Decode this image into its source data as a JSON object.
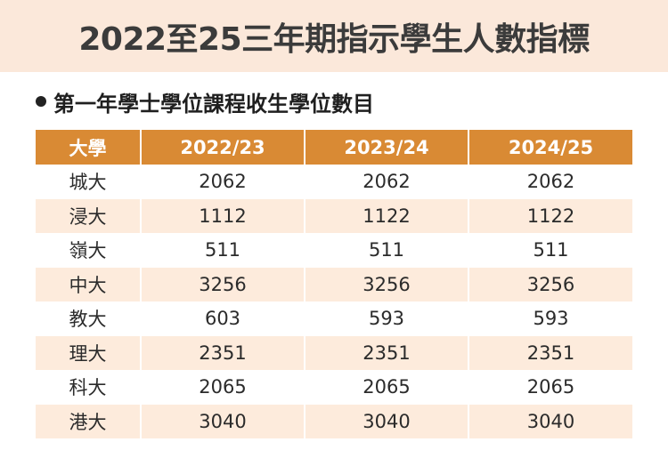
{
  "title": "2022至25三年期指示學生人數指標",
  "subtitle": "第一年學士學位課程收生學位數目",
  "table": {
    "headers": [
      "大學",
      "2022/23",
      "2023/24",
      "2024/25"
    ],
    "rows": [
      [
        "城大",
        "2062",
        "2062",
        "2062"
      ],
      [
        "浸大",
        "1112",
        "1122",
        "1122"
      ],
      [
        "嶺大",
        "511",
        "511",
        "511"
      ],
      [
        "中大",
        "3256",
        "3256",
        "3256"
      ],
      [
        "教大",
        "603",
        "593",
        "593"
      ],
      [
        "理大",
        "2351",
        "2351",
        "2351"
      ],
      [
        "科大",
        "2065",
        "2065",
        "2065"
      ],
      [
        "港大",
        "3040",
        "3040",
        "3040"
      ]
    ]
  },
  "colors": {
    "title_band": "#fbe8da",
    "header": "#d98a34",
    "stripe": "#fdebdc"
  }
}
